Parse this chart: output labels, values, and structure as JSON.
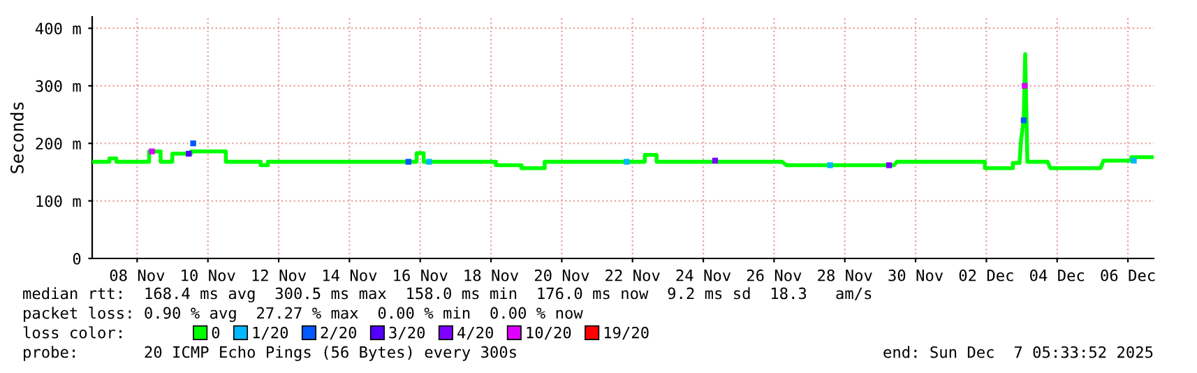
{
  "chart_data": {
    "type": "line",
    "ylabel": "Seconds",
    "legend_title": "loss color:",
    "legend": "bottom",
    "grid": true,
    "xlim": [
      "2025-11-07T05:30",
      "2025-12-07T05:30"
    ],
    "xticks": [
      {
        "value": "2025-11-08T12:00",
        "label": "08 Nov"
      },
      {
        "value": "2025-11-10T12:00",
        "label": "10 Nov"
      },
      {
        "value": "2025-11-12T12:00",
        "label": "12 Nov"
      },
      {
        "value": "2025-11-14T12:00",
        "label": "14 Nov"
      },
      {
        "value": "2025-11-16T12:00",
        "label": "16 Nov"
      },
      {
        "value": "2025-11-18T12:00",
        "label": "18 Nov"
      },
      {
        "value": "2025-11-20T12:00",
        "label": "20 Nov"
      },
      {
        "value": "2025-11-22T12:00",
        "label": "22 Nov"
      },
      {
        "value": "2025-11-24T12:00",
        "label": "24 Nov"
      },
      {
        "value": "2025-11-26T12:00",
        "label": "26 Nov"
      },
      {
        "value": "2025-11-28T12:00",
        "label": "28 Nov"
      },
      {
        "value": "2025-11-30T12:00",
        "label": "30 Nov"
      },
      {
        "value": "2025-12-02T12:00",
        "label": "02 Dec"
      },
      {
        "value": "2025-12-04T12:00",
        "label": "04 Dec"
      },
      {
        "value": "2025-12-06T12:00",
        "label": "06 Dec"
      }
    ],
    "ylim": [
      0,
      420
    ],
    "yticks": [
      0,
      {
        "value": 100,
        "label": "100 m"
      },
      {
        "value": 200,
        "label": "200 m"
      },
      {
        "value": 300,
        "label": "300 m"
      },
      {
        "value": 400,
        "label": "400 m"
      }
    ],
    "series": [
      {
        "name": "0",
        "color": "#00ff00",
        "x": [
          "2025-11-07T06:10",
          "2025-11-07T17:10",
          "2025-11-07T17:10",
          "2025-11-07T21:50",
          "2025-11-07T21:50",
          "2025-11-08T20:05",
          "2025-11-08T20:05",
          "2025-11-09T03:55",
          "2025-11-09T03:55",
          "2025-11-09T11:50",
          "2025-11-09T11:50",
          "2025-11-10T00:30",
          "2025-11-10T00:30",
          "2025-11-11T00:10",
          "2025-11-11T00:10",
          "2025-11-11T23:50",
          "2025-11-11T23:50",
          "2025-11-12T04:40",
          "2025-11-12T04:40",
          "2025-11-16T09:35",
          "2025-11-16T09:35",
          "2025-11-16T14:20",
          "2025-11-16T14:20",
          "2025-11-18T15:20",
          "2025-11-18T15:20",
          "2025-11-19T08:40",
          "2025-11-19T08:40",
          "2025-11-20T00:25",
          "2025-11-20T00:25",
          "2025-11-21T14:20",
          "2025-11-22T20:20",
          "2025-11-22T20:20",
          "2025-11-23T04:20",
          "2025-11-23T04:20",
          "2025-11-26T17:30",
          "2025-11-26T20:25",
          "2025-11-29T21:20",
          "2025-11-29T23:20",
          "2025-12-02T11:00",
          "2025-12-02T11:00",
          "2025-12-03T06:00",
          "2025-12-03T06:00",
          "2025-12-03T10:30",
          "2025-12-03T11:30",
          "2025-12-03T13:20",
          "2025-12-03T14:20",
          "2025-12-03T15:50",
          "2025-12-04T05:30",
          "2025-12-04T07:25",
          "2025-12-05T17:30",
          "2025-12-05T19:25",
          "2025-12-06T14:20",
          "2025-12-06T14:20",
          "2025-12-07T04:30"
        ],
        "values": [
          168,
          168,
          174,
          174,
          168,
          168,
          186,
          186,
          168,
          168,
          182,
          182,
          186,
          186,
          168,
          168,
          162,
          162,
          168,
          168,
          183,
          183,
          168,
          168,
          162,
          162,
          157,
          157,
          168,
          168,
          168,
          180,
          180,
          168,
          168,
          162,
          162,
          168,
          168,
          157,
          157,
          166,
          166,
          205,
          240,
          355,
          168,
          168,
          157,
          157,
          170,
          170,
          176,
          176
        ]
      },
      {
        "name": "1/20",
        "color": "#00b8ff",
        "type": "scatter",
        "marker": "square",
        "x": [
          "2025-11-16T18:00",
          "2025-11-22T08:00",
          "2025-11-28T02:00",
          "2025-12-06T16:00"
        ],
        "values": [
          168,
          168,
          162,
          170
        ]
      },
      {
        "name": "2/20",
        "color": "#0059ff",
        "type": "scatter",
        "marker": "square",
        "x": [
          "2025-11-10T02:00",
          "2025-11-16T04:00",
          "2025-12-03T13:20"
        ],
        "values": [
          200,
          168,
          240
        ]
      },
      {
        "name": "3/20",
        "color": "#5500ff",
        "type": "scatter",
        "marker": "square",
        "x": [
          "2025-11-09T23:00"
        ],
        "values": [
          182
        ]
      },
      {
        "name": "4/20",
        "color": "#7e00ff",
        "type": "scatter",
        "marker": "square",
        "x": [
          "2025-11-24T20:00",
          "2025-11-29T18:00"
        ],
        "values": [
          170,
          162
        ]
      },
      {
        "name": "10/20",
        "color": "#dd00ff",
        "type": "scatter",
        "marker": "square",
        "x": [
          "2025-11-08T22:00",
          "2025-12-03T14:00"
        ],
        "values": [
          186,
          300
        ]
      },
      {
        "name": "19/20",
        "color": "#ff0000",
        "type": "scatter",
        "marker": "square"
      }
    ],
    "annotations": [
      "median rtt:  168.4 ms avg  300.5 ms max  158.0 ms min  176.0 ms now  9.2 ms sd  18.3   am/s",
      "packet loss: 0.90 % avg  27.27 % max  0.00 % min  0.00 % now",
      "probe:       20 ICMP Echo Pings (56 Bytes) every 300s",
      "end: Sun Dec  7 05:33:52 2025"
    ]
  }
}
